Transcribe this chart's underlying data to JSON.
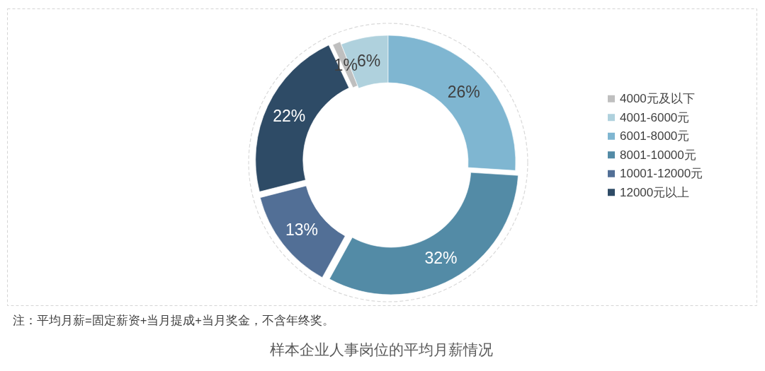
{
  "chart_data": {
    "type": "donut",
    "title": "样本企业人事岗位的平均月薪情况",
    "annotations": [
      "注：平均月薪=固定薪资+当月提成+当月奖金，不含年终奖。"
    ],
    "categories": [
      "4000元及以下",
      "4001-6000元",
      "6001-8000元",
      "8001-10000元",
      "10001-12000元",
      "12000元以上"
    ],
    "values": [
      1,
      6,
      26,
      32,
      13,
      22
    ],
    "colors": [
      "#bfbfbf",
      "#afd1dd",
      "#7fb6d1",
      "#538ba6",
      "#526f96",
      "#2e4b66"
    ],
    "value_labels": [
      "1%",
      "6%",
      "26%",
      "32%",
      "13%",
      "22%"
    ],
    "legend": "right"
  }
}
